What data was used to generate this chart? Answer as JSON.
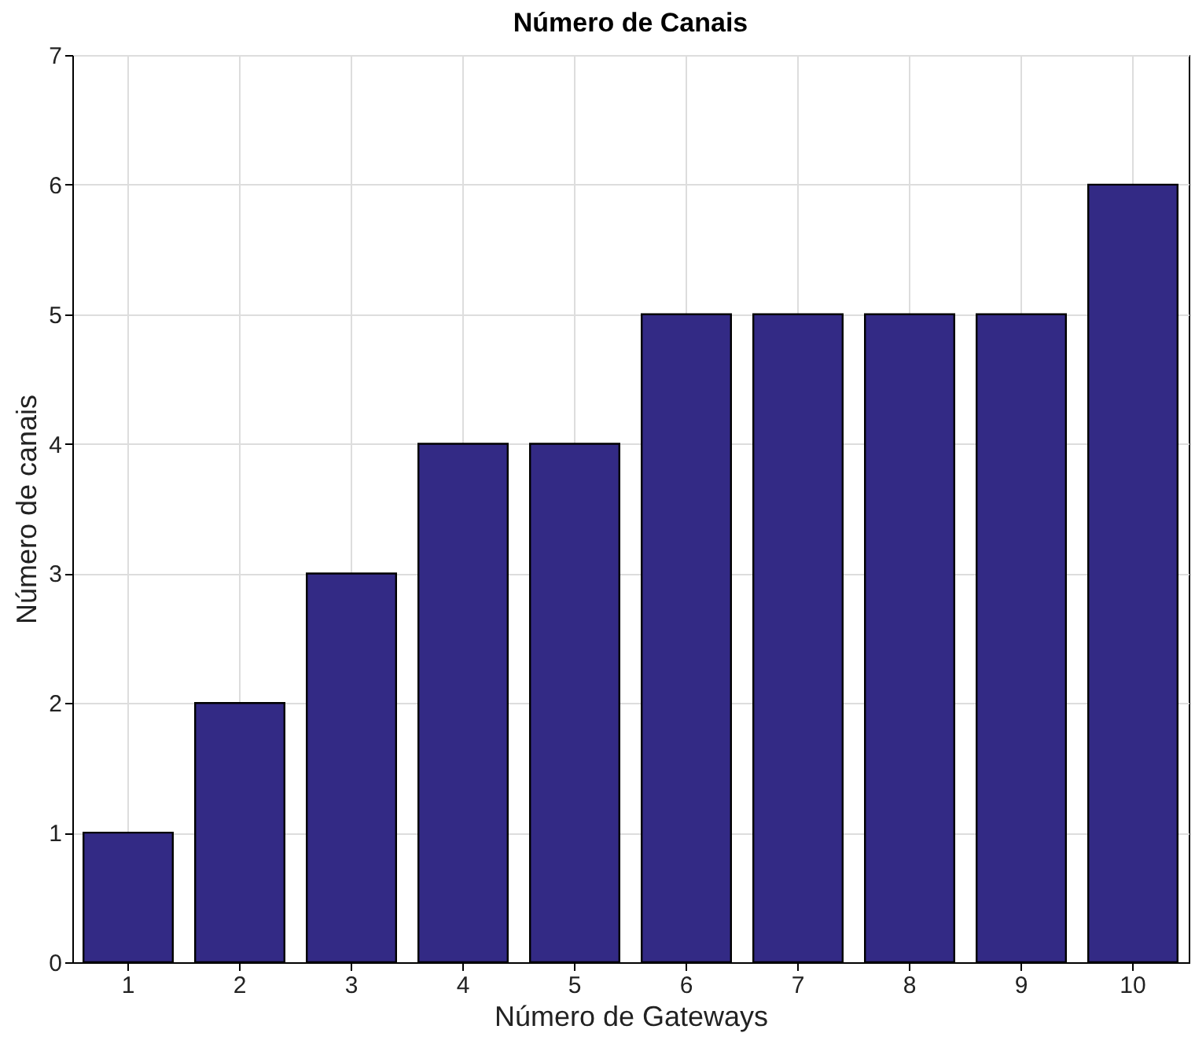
{
  "chart_data": {
    "type": "bar",
    "title": "Número de Canais",
    "xlabel": "Número de Gateways",
    "ylabel": "Número de canais",
    "categories": [
      "1",
      "2",
      "3",
      "4",
      "5",
      "6",
      "7",
      "8",
      "9",
      "10"
    ],
    "values": [
      1,
      2,
      3,
      4,
      4,
      5,
      5,
      5,
      5,
      6
    ],
    "color": "#332a85",
    "ylim": [
      0,
      7
    ],
    "yticks": [
      0,
      1,
      2,
      3,
      4,
      5,
      6,
      7
    ],
    "grid": true
  }
}
